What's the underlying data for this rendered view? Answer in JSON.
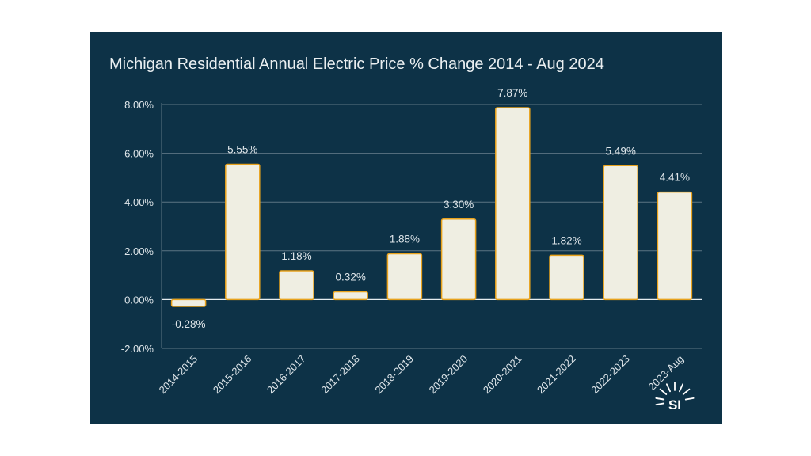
{
  "chart_data": {
    "type": "bar",
    "title": "Michigan Residential Annual Electric Price % Change 2014 - Aug 2024",
    "xlabel": "",
    "ylabel": "",
    "categories": [
      "2014-2015",
      "2015-2016",
      "2016-2017",
      "2017-2018",
      "2018-2019",
      "2019-2020",
      "2020-2021",
      "2021-2022",
      "2022-2023",
      "2023-Aug"
    ],
    "values": [
      -0.28,
      5.55,
      1.18,
      0.32,
      1.88,
      3.3,
      7.87,
      1.82,
      5.49,
      4.41
    ],
    "data_labels": [
      "-0.28%",
      "5.55%",
      "1.18%",
      "0.32%",
      "1.88%",
      "3.30%",
      "7.87%",
      "1.82%",
      "5.49%",
      "4.41%"
    ],
    "ylim": [
      -2,
      8
    ],
    "yticks": [
      -2,
      0,
      2,
      4,
      6,
      8
    ],
    "ytick_labels": [
      "-2.00%",
      "0.00%",
      "2.00%",
      "4.00%",
      "6.00%",
      "8.00%"
    ],
    "grid": true,
    "legend": "none",
    "colors": {
      "background": "#0d3247",
      "bar_fill": "#efeee2",
      "bar_stroke": "#e8a21c",
      "grid": "#5d7583",
      "text": "#dfe6ea"
    }
  },
  "logo": {
    "icon": "sunburst-logo-icon",
    "text": "SI"
  }
}
